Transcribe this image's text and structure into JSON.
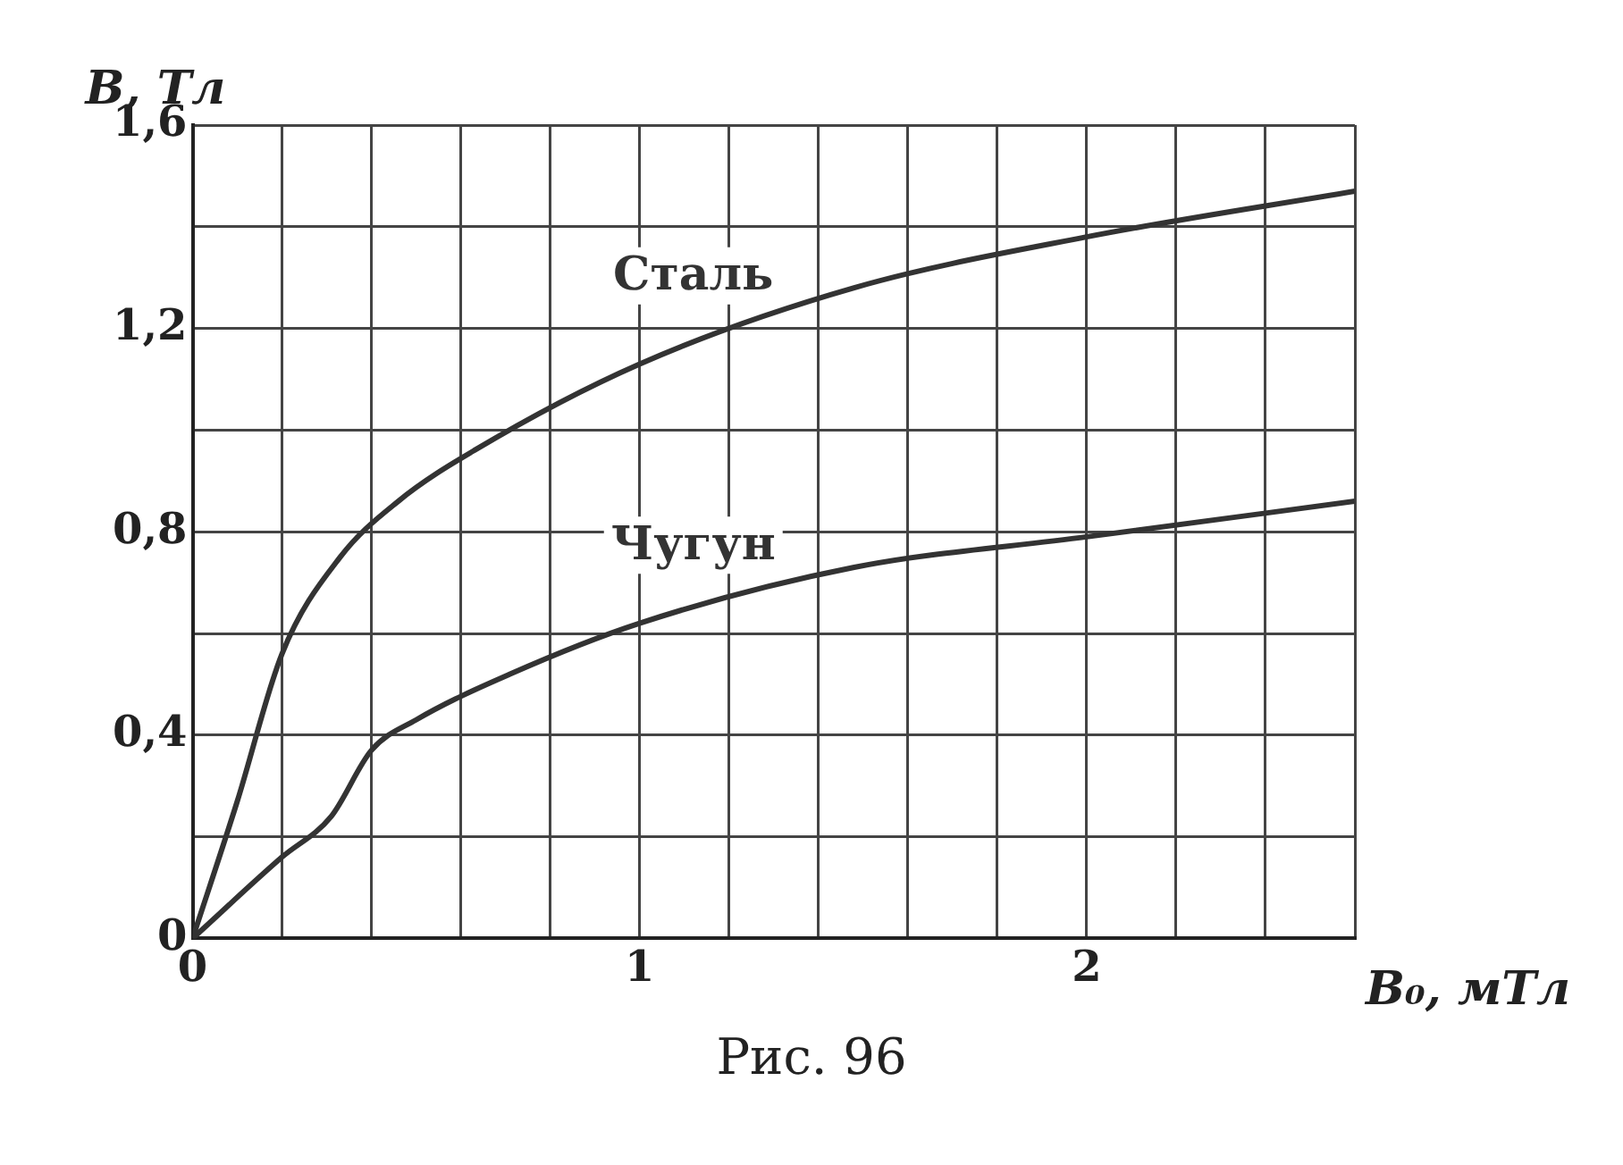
{
  "chart_data": {
    "type": "line",
    "xlabel": "B₀, мТл",
    "ylabel": "B, Тл",
    "annotations": [
      "Рис. 96"
    ],
    "xlim": [
      0,
      2.6
    ],
    "xticks": [
      0,
      {
        "value": 0.2,
        "label": null
      },
      {
        "value": 0.4,
        "label": null
      },
      {
        "value": 0.6,
        "label": null
      },
      {
        "value": 0.8,
        "label": null
      },
      1,
      {
        "value": 1.2,
        "label": null
      },
      {
        "value": 1.4,
        "label": null
      },
      {
        "value": 1.6,
        "label": null
      },
      {
        "value": 1.8,
        "label": null
      },
      2,
      {
        "value": 2.2,
        "label": null
      },
      {
        "value": 2.4,
        "label": null
      },
      {
        "value": 2.6,
        "label": null
      }
    ],
    "ylim": [
      0,
      1.6
    ],
    "yticks": [
      0,
      {
        "value": 0.2,
        "label": null
      },
      {
        "value": 0.4,
        "label": "0,4"
      },
      {
        "value": 0.6,
        "label": null
      },
      {
        "value": 0.8,
        "label": "0,8"
      },
      {
        "value": 1.0,
        "label": null
      },
      {
        "value": 1.2,
        "label": "1,2"
      },
      {
        "value": 1.4,
        "label": null
      },
      {
        "value": 1.6,
        "label": "1,6"
      }
    ],
    "grid": true,
    "marker": "none",
    "line_style": "solid",
    "series": [
      {
        "name": "Сталь",
        "color": "#333333",
        "x": [
          0,
          0.1,
          0.2,
          0.33,
          0.46,
          0.63,
          1.0,
          1.48,
          2.0,
          2.6
        ],
        "values": [
          0,
          0.27,
          0.56,
          0.75,
          0.86,
          0.96,
          1.13,
          1.28,
          1.38,
          1.47
        ]
      },
      {
        "name": "Чугун",
        "color": "#333333",
        "x": [
          0,
          0.2,
          0.31,
          0.4,
          0.5,
          0.71,
          1.0,
          1.48,
          2.0,
          2.6
        ],
        "values": [
          0,
          0.16,
          0.24,
          0.37,
          0.43,
          0.52,
          0.62,
          0.73,
          0.79,
          0.86
        ]
      }
    ]
  }
}
